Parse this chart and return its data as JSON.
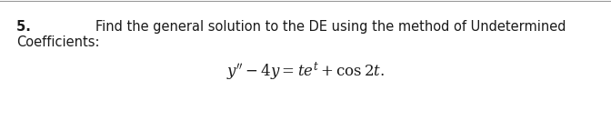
{
  "background_color": "#ffffff",
  "top_line_color": "#999999",
  "number_text": "5. ",
  "header_text": "Find the general solution to the DE using the method of Undetermined",
  "second_line_text": "Coefficients:",
  "equation": "$y'' - 4y = te^t + \\cos 2t.$",
  "font_size_body": 10.5,
  "font_size_eq": 12,
  "text_color": "#1a1a1a",
  "fig_width": 6.72,
  "fig_height": 1.44,
  "dpi": 100
}
